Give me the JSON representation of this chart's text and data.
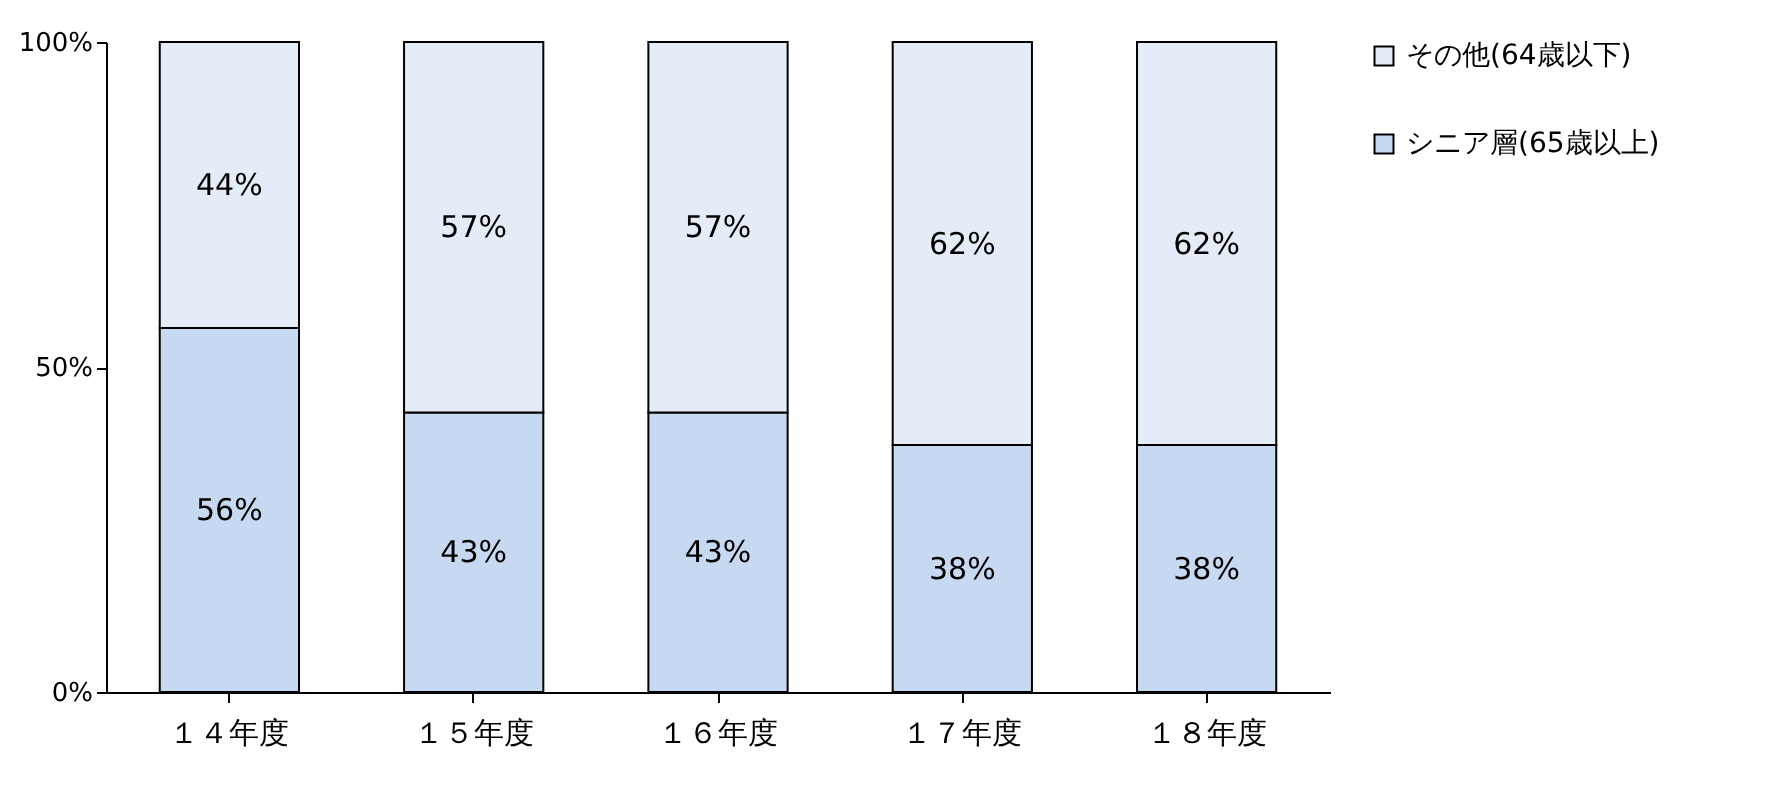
{
  "chart_data": {
    "type": "bar",
    "stacked": true,
    "categories": [
      "１４年度",
      "１５年度",
      "１６年度",
      "１７年度",
      "１８年度"
    ],
    "series": [
      {
        "name": "シニア層(65歳以上)",
        "color": "#c6d9f1",
        "values": [
          56,
          43,
          43,
          38,
          38
        ],
        "value_labels": [
          "56%",
          "43%",
          "43%",
          "38%",
          "38%"
        ]
      },
      {
        "name": "その他(64歳以下)",
        "color": "#e4ecf7",
        "values": [
          44,
          57,
          57,
          62,
          62
        ],
        "value_labels": [
          "44%",
          "57%",
          "57%",
          "62%",
          "62%"
        ]
      }
    ],
    "ylim": [
      0,
      100
    ],
    "yticks": [
      {
        "value": 0,
        "label": "0%"
      },
      {
        "value": 50,
        "label": "50%"
      },
      {
        "value": 100,
        "label": "100%"
      }
    ],
    "grid": false,
    "legend": "right"
  }
}
